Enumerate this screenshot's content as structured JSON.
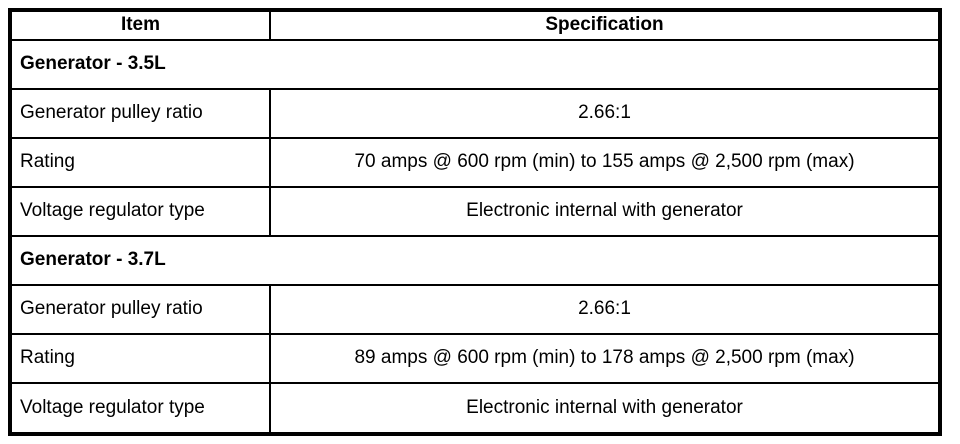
{
  "table": {
    "columns": [
      {
        "label": "Item"
      },
      {
        "label": "Specification"
      }
    ],
    "sections": [
      {
        "header": "Generator - 3.5L",
        "rows": [
          {
            "item": "Generator pulley ratio",
            "spec": "2.66:1"
          },
          {
            "item": "Rating",
            "spec": "70 amps @ 600 rpm (min) to 155 amps @ 2,500 rpm (max)"
          },
          {
            "item": "Voltage regulator type",
            "spec": "Electronic internal with generator"
          }
        ]
      },
      {
        "header": "Generator - 3.7L",
        "rows": [
          {
            "item": "Generator pulley ratio",
            "spec": "2.66:1"
          },
          {
            "item": "Rating",
            "spec": "89 amps @ 600 rpm (min) to 178 amps @ 2,500 rpm (max)"
          },
          {
            "item": "Voltage regulator type",
            "spec": "Electronic internal with generator"
          }
        ]
      }
    ],
    "colors": {
      "border": "#000000",
      "background": "#ffffff",
      "text": "#000000"
    }
  }
}
